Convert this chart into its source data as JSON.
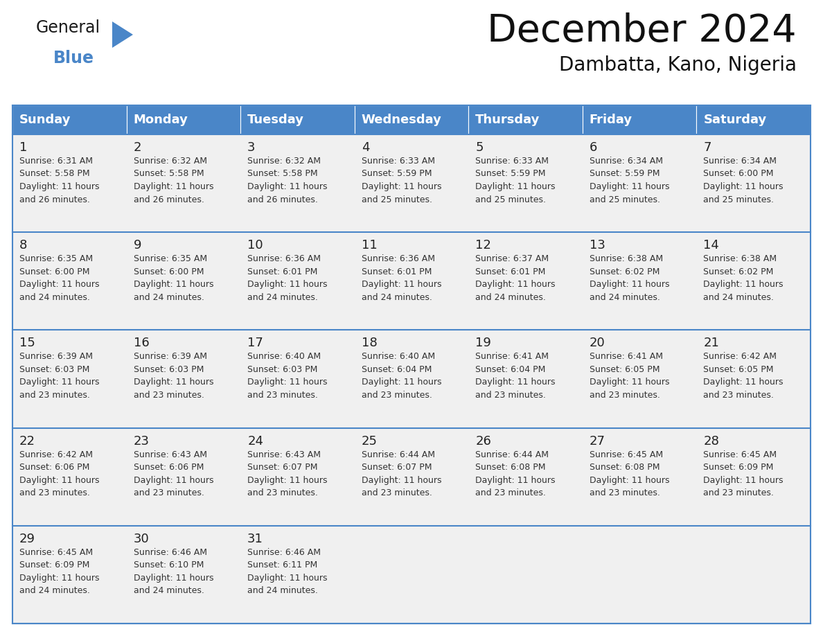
{
  "title": "December 2024",
  "subtitle": "Dambatta, Kano, Nigeria",
  "header_color": "#4a86c8",
  "header_text_color": "#ffffff",
  "day_names": [
    "Sunday",
    "Monday",
    "Tuesday",
    "Wednesday",
    "Thursday",
    "Friday",
    "Saturday"
  ],
  "background_color": "#ffffff",
  "cell_bg_color": "#f0f0f0",
  "grid_color": "#4a86c8",
  "days": [
    {
      "day": 1,
      "col": 0,
      "row": 0,
      "sunrise": "6:31 AM",
      "sunset": "5:58 PM",
      "daylight_min": "26"
    },
    {
      "day": 2,
      "col": 1,
      "row": 0,
      "sunrise": "6:32 AM",
      "sunset": "5:58 PM",
      "daylight_min": "26"
    },
    {
      "day": 3,
      "col": 2,
      "row": 0,
      "sunrise": "6:32 AM",
      "sunset": "5:58 PM",
      "daylight_min": "26"
    },
    {
      "day": 4,
      "col": 3,
      "row": 0,
      "sunrise": "6:33 AM",
      "sunset": "5:59 PM",
      "daylight_min": "25"
    },
    {
      "day": 5,
      "col": 4,
      "row": 0,
      "sunrise": "6:33 AM",
      "sunset": "5:59 PM",
      "daylight_min": "25"
    },
    {
      "day": 6,
      "col": 5,
      "row": 0,
      "sunrise": "6:34 AM",
      "sunset": "5:59 PM",
      "daylight_min": "25"
    },
    {
      "day": 7,
      "col": 6,
      "row": 0,
      "sunrise": "6:34 AM",
      "sunset": "6:00 PM",
      "daylight_min": "25"
    },
    {
      "day": 8,
      "col": 0,
      "row": 1,
      "sunrise": "6:35 AM",
      "sunset": "6:00 PM",
      "daylight_min": "24"
    },
    {
      "day": 9,
      "col": 1,
      "row": 1,
      "sunrise": "6:35 AM",
      "sunset": "6:00 PM",
      "daylight_min": "24"
    },
    {
      "day": 10,
      "col": 2,
      "row": 1,
      "sunrise": "6:36 AM",
      "sunset": "6:01 PM",
      "daylight_min": "24"
    },
    {
      "day": 11,
      "col": 3,
      "row": 1,
      "sunrise": "6:36 AM",
      "sunset": "6:01 PM",
      "daylight_min": "24"
    },
    {
      "day": 12,
      "col": 4,
      "row": 1,
      "sunrise": "6:37 AM",
      "sunset": "6:01 PM",
      "daylight_min": "24"
    },
    {
      "day": 13,
      "col": 5,
      "row": 1,
      "sunrise": "6:38 AM",
      "sunset": "6:02 PM",
      "daylight_min": "24"
    },
    {
      "day": 14,
      "col": 6,
      "row": 1,
      "sunrise": "6:38 AM",
      "sunset": "6:02 PM",
      "daylight_min": "24"
    },
    {
      "day": 15,
      "col": 0,
      "row": 2,
      "sunrise": "6:39 AM",
      "sunset": "6:03 PM",
      "daylight_min": "23"
    },
    {
      "day": 16,
      "col": 1,
      "row": 2,
      "sunrise": "6:39 AM",
      "sunset": "6:03 PM",
      "daylight_min": "23"
    },
    {
      "day": 17,
      "col": 2,
      "row": 2,
      "sunrise": "6:40 AM",
      "sunset": "6:03 PM",
      "daylight_min": "23"
    },
    {
      "day": 18,
      "col": 3,
      "row": 2,
      "sunrise": "6:40 AM",
      "sunset": "6:04 PM",
      "daylight_min": "23"
    },
    {
      "day": 19,
      "col": 4,
      "row": 2,
      "sunrise": "6:41 AM",
      "sunset": "6:04 PM",
      "daylight_min": "23"
    },
    {
      "day": 20,
      "col": 5,
      "row": 2,
      "sunrise": "6:41 AM",
      "sunset": "6:05 PM",
      "daylight_min": "23"
    },
    {
      "day": 21,
      "col": 6,
      "row": 2,
      "sunrise": "6:42 AM",
      "sunset": "6:05 PM",
      "daylight_min": "23"
    },
    {
      "day": 22,
      "col": 0,
      "row": 3,
      "sunrise": "6:42 AM",
      "sunset": "6:06 PM",
      "daylight_min": "23"
    },
    {
      "day": 23,
      "col": 1,
      "row": 3,
      "sunrise": "6:43 AM",
      "sunset": "6:06 PM",
      "daylight_min": "23"
    },
    {
      "day": 24,
      "col": 2,
      "row": 3,
      "sunrise": "6:43 AM",
      "sunset": "6:07 PM",
      "daylight_min": "23"
    },
    {
      "day": 25,
      "col": 3,
      "row": 3,
      "sunrise": "6:44 AM",
      "sunset": "6:07 PM",
      "daylight_min": "23"
    },
    {
      "day": 26,
      "col": 4,
      "row": 3,
      "sunrise": "6:44 AM",
      "sunset": "6:08 PM",
      "daylight_min": "23"
    },
    {
      "day": 27,
      "col": 5,
      "row": 3,
      "sunrise": "6:45 AM",
      "sunset": "6:08 PM",
      "daylight_min": "23"
    },
    {
      "day": 28,
      "col": 6,
      "row": 3,
      "sunrise": "6:45 AM",
      "sunset": "6:09 PM",
      "daylight_min": "23"
    },
    {
      "day": 29,
      "col": 0,
      "row": 4,
      "sunrise": "6:45 AM",
      "sunset": "6:09 PM",
      "daylight_min": "24"
    },
    {
      "day": 30,
      "col": 1,
      "row": 4,
      "sunrise": "6:46 AM",
      "sunset": "6:10 PM",
      "daylight_min": "24"
    },
    {
      "day": 31,
      "col": 2,
      "row": 4,
      "sunrise": "6:46 AM",
      "sunset": "6:11 PM",
      "daylight_min": "24"
    }
  ],
  "logo_text_general": "General",
  "logo_text_blue": "Blue",
  "logo_triangle_color": "#4a86c8"
}
